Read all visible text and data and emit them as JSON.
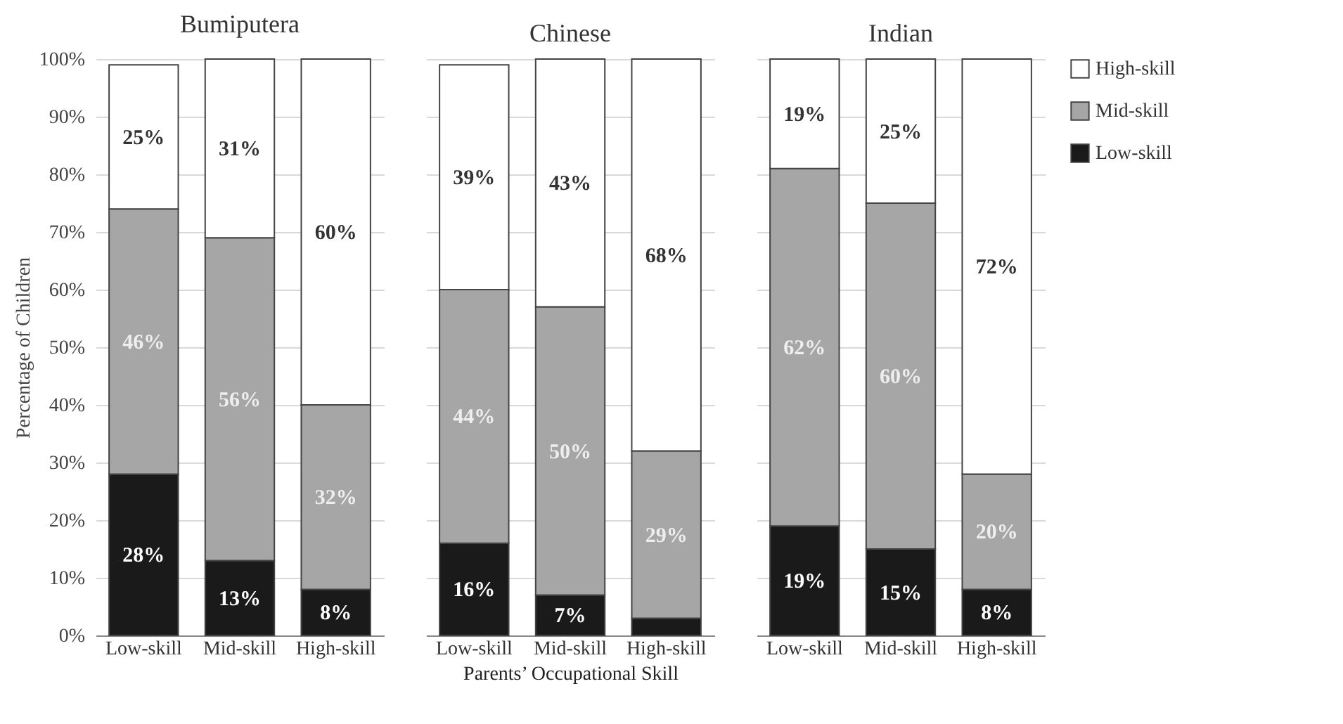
{
  "chart_data": [
    {
      "type": "bar",
      "title": "Bumiputera",
      "ylabel": "Percentage of Children",
      "categories": [
        "Low-skill",
        "Mid-skill",
        "High-skill"
      ],
      "stacked": true,
      "grid": "y",
      "ylim": [
        0,
        100
      ],
      "yticks": [
        {
          "value": 0,
          "label": "0%"
        },
        {
          "value": 10,
          "label": "10%"
        },
        {
          "value": 20,
          "label": "20%"
        },
        {
          "value": 30,
          "label": "30%"
        },
        {
          "value": 40,
          "label": "40%"
        },
        {
          "value": 50,
          "label": "50%"
        },
        {
          "value": 60,
          "label": "60%"
        },
        {
          "value": 70,
          "label": "70%"
        },
        {
          "value": 80,
          "label": "80%"
        },
        {
          "value": 90,
          "label": "90%"
        },
        {
          "value": 100,
          "label": "100%"
        }
      ],
      "series": [
        {
          "color": "#1a1a1a",
          "values": [
            28,
            13,
            8
          ],
          "value_labels": [
            "28%",
            "13%",
            "8%"
          ]
        },
        {
          "color": "#a6a6a6",
          "values": [
            46,
            56,
            32
          ],
          "value_labels": [
            "46%",
            "56%",
            "32%"
          ]
        },
        {
          "color": "#ffffff",
          "values": [
            25,
            31,
            60
          ],
          "value_labels": [
            "25%",
            "31%",
            "60%"
          ]
        }
      ]
    },
    {
      "type": "bar",
      "title": "Chinese",
      "xlabel": "Parents’ Occupational Skill",
      "categories": [
        "Low-skill",
        "Mid-skill",
        "High-skill"
      ],
      "stacked": true,
      "grid": "y",
      "tick_labels": "x",
      "ylim": [
        0,
        100
      ],
      "yticks": [
        0,
        10,
        20,
        30,
        40,
        50,
        60,
        70,
        80,
        90,
        100
      ],
      "series": [
        {
          "color": "#1a1a1a",
          "values": [
            16,
            7,
            3
          ],
          "value_labels": [
            "16%",
            "7%",
            null
          ]
        },
        {
          "color": "#a6a6a6",
          "values": [
            44,
            50,
            29
          ],
          "value_labels": [
            "44%",
            "50%",
            "29%"
          ]
        },
        {
          "color": "#ffffff",
          "values": [
            39,
            43,
            68
          ],
          "value_labels": [
            "39%",
            "43%",
            "68%"
          ]
        }
      ]
    },
    {
      "type": "bar",
      "title": "Indian",
      "categories": [
        "Low-skill",
        "Mid-skill",
        "High-skill"
      ],
      "stacked": true,
      "grid": "y",
      "tick_labels": "x",
      "legend": "right",
      "ylim": [
        0,
        100
      ],
      "yticks": [
        0,
        10,
        20,
        30,
        40,
        50,
        60,
        70,
        80,
        90,
        100
      ],
      "series": [
        {
          "name": "Low-skill",
          "color": "#1a1a1a",
          "values": [
            19,
            15,
            8
          ],
          "value_labels": [
            "19%",
            "15%",
            "8%"
          ]
        },
        {
          "name": "Mid-skill",
          "color": "#a6a6a6",
          "values": [
            62,
            60,
            20
          ],
          "value_labels": [
            "62%",
            "60%",
            "20%"
          ]
        },
        {
          "name": "High-skill",
          "color": "#ffffff",
          "values": [
            19,
            25,
            72
          ],
          "value_labels": [
            "19%",
            "25%",
            "72%"
          ]
        }
      ]
    }
  ]
}
